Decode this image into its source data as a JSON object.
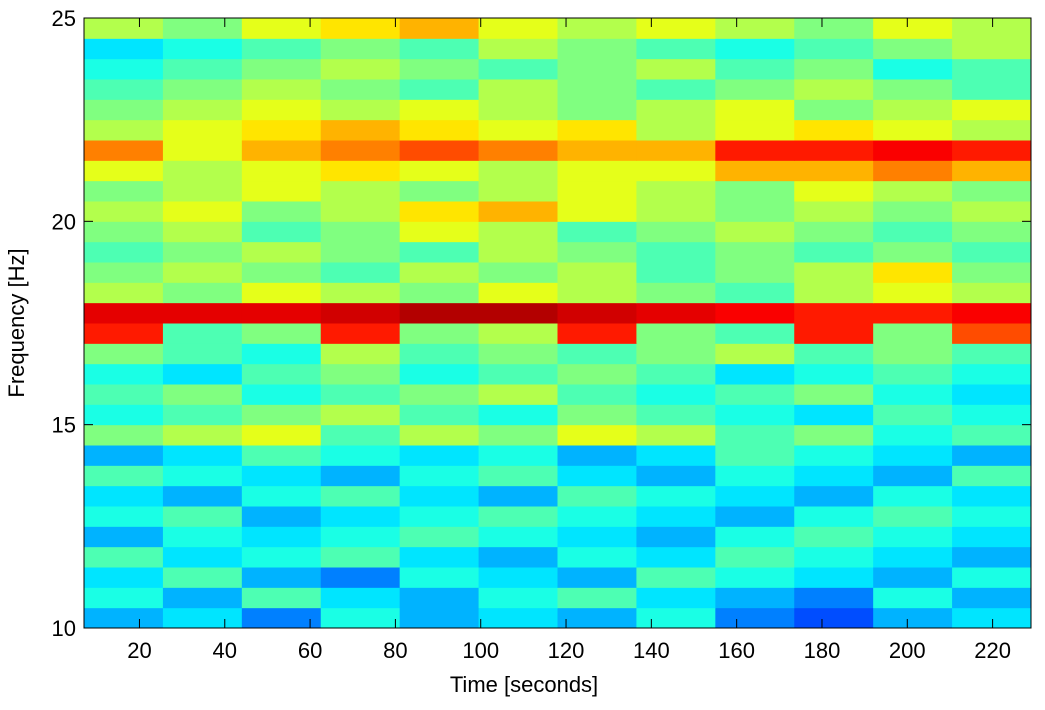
{
  "chart_data": {
    "type": "heatmap",
    "colormap": "jet",
    "xlabel": "Time [seconds]",
    "ylabel": "Frequency [Hz]",
    "xlim": [
      7,
      229
    ],
    "ylim": [
      10,
      25
    ],
    "xticks": [
      20,
      40,
      60,
      80,
      100,
      120,
      140,
      160,
      180,
      200,
      220
    ],
    "yticks": [
      10,
      15,
      20,
      25
    ],
    "x": [
      16.25,
      34.75,
      53.25,
      71.75,
      90.25,
      108.75,
      127.25,
      145.75,
      164.25,
      182.75,
      201.25,
      219.75
    ],
    "y": [
      10.25,
      10.75,
      11.25,
      11.75,
      12.25,
      12.75,
      13.25,
      13.75,
      14.25,
      14.75,
      15.25,
      15.75,
      16.25,
      16.75,
      17.25,
      17.75,
      18.25,
      18.75,
      19.25,
      19.75,
      20.25,
      20.75,
      21.25,
      21.75,
      22.25,
      22.75,
      23.25,
      23.75,
      24.25,
      24.75
    ],
    "z": [
      [
        0.3,
        0.35,
        0.25,
        0.4,
        0.3,
        0.35,
        0.3,
        0.4,
        0.25,
        0.2,
        0.3,
        0.35
      ],
      [
        0.4,
        0.3,
        0.45,
        0.35,
        0.3,
        0.4,
        0.45,
        0.35,
        0.3,
        0.25,
        0.4,
        0.3
      ],
      [
        0.35,
        0.45,
        0.3,
        0.25,
        0.4,
        0.35,
        0.3,
        0.45,
        0.4,
        0.35,
        0.3,
        0.4
      ],
      [
        0.45,
        0.35,
        0.4,
        0.45,
        0.35,
        0.3,
        0.4,
        0.35,
        0.45,
        0.4,
        0.35,
        0.3
      ],
      [
        0.3,
        0.4,
        0.35,
        0.4,
        0.45,
        0.4,
        0.35,
        0.3,
        0.4,
        0.45,
        0.4,
        0.35
      ],
      [
        0.4,
        0.45,
        0.3,
        0.35,
        0.4,
        0.45,
        0.4,
        0.35,
        0.3,
        0.4,
        0.45,
        0.4
      ],
      [
        0.35,
        0.3,
        0.4,
        0.45,
        0.35,
        0.3,
        0.45,
        0.4,
        0.35,
        0.3,
        0.4,
        0.35
      ],
      [
        0.45,
        0.4,
        0.35,
        0.3,
        0.4,
        0.45,
        0.35,
        0.3,
        0.4,
        0.35,
        0.3,
        0.45
      ],
      [
        0.3,
        0.35,
        0.45,
        0.4,
        0.35,
        0.4,
        0.3,
        0.35,
        0.45,
        0.4,
        0.35,
        0.3
      ],
      [
        0.5,
        0.55,
        0.6,
        0.45,
        0.55,
        0.5,
        0.6,
        0.55,
        0.45,
        0.5,
        0.4,
        0.45
      ],
      [
        0.4,
        0.45,
        0.5,
        0.55,
        0.45,
        0.4,
        0.5,
        0.45,
        0.4,
        0.35,
        0.45,
        0.4
      ],
      [
        0.45,
        0.5,
        0.4,
        0.45,
        0.5,
        0.55,
        0.45,
        0.4,
        0.45,
        0.5,
        0.4,
        0.35
      ],
      [
        0.4,
        0.35,
        0.45,
        0.5,
        0.4,
        0.45,
        0.5,
        0.45,
        0.35,
        0.4,
        0.45,
        0.4
      ],
      [
        0.5,
        0.45,
        0.4,
        0.55,
        0.45,
        0.5,
        0.45,
        0.5,
        0.55,
        0.45,
        0.5,
        0.45
      ],
      [
        0.85,
        0.45,
        0.5,
        0.85,
        0.5,
        0.55,
        0.85,
        0.5,
        0.45,
        0.85,
        0.5,
        0.8
      ],
      [
        0.9,
        0.9,
        0.9,
        0.92,
        0.95,
        0.95,
        0.92,
        0.9,
        0.88,
        0.85,
        0.85,
        0.88
      ],
      [
        0.55,
        0.5,
        0.6,
        0.55,
        0.5,
        0.6,
        0.55,
        0.5,
        0.45,
        0.55,
        0.6,
        0.55
      ],
      [
        0.5,
        0.55,
        0.5,
        0.45,
        0.55,
        0.5,
        0.55,
        0.45,
        0.5,
        0.55,
        0.65,
        0.5
      ],
      [
        0.45,
        0.5,
        0.55,
        0.5,
        0.45,
        0.55,
        0.5,
        0.45,
        0.5,
        0.45,
        0.5,
        0.45
      ],
      [
        0.5,
        0.55,
        0.45,
        0.5,
        0.6,
        0.55,
        0.45,
        0.5,
        0.55,
        0.5,
        0.45,
        0.5
      ],
      [
        0.55,
        0.6,
        0.5,
        0.55,
        0.65,
        0.7,
        0.6,
        0.55,
        0.5,
        0.55,
        0.5,
        0.55
      ],
      [
        0.5,
        0.55,
        0.6,
        0.55,
        0.5,
        0.55,
        0.6,
        0.55,
        0.5,
        0.6,
        0.55,
        0.5
      ],
      [
        0.6,
        0.55,
        0.6,
        0.65,
        0.6,
        0.55,
        0.6,
        0.6,
        0.7,
        0.7,
        0.75,
        0.7
      ],
      [
        0.75,
        0.6,
        0.7,
        0.75,
        0.8,
        0.75,
        0.7,
        0.7,
        0.85,
        0.85,
        0.88,
        0.85
      ],
      [
        0.55,
        0.6,
        0.65,
        0.7,
        0.65,
        0.6,
        0.65,
        0.55,
        0.6,
        0.65,
        0.6,
        0.55
      ],
      [
        0.5,
        0.55,
        0.6,
        0.55,
        0.6,
        0.55,
        0.5,
        0.55,
        0.6,
        0.5,
        0.55,
        0.6
      ],
      [
        0.45,
        0.5,
        0.55,
        0.5,
        0.45,
        0.55,
        0.5,
        0.45,
        0.5,
        0.55,
        0.5,
        0.45
      ],
      [
        0.4,
        0.45,
        0.5,
        0.55,
        0.5,
        0.45,
        0.5,
        0.55,
        0.45,
        0.5,
        0.4,
        0.45
      ],
      [
        0.35,
        0.4,
        0.45,
        0.5,
        0.45,
        0.55,
        0.5,
        0.45,
        0.4,
        0.45,
        0.5,
        0.55
      ],
      [
        0.55,
        0.5,
        0.6,
        0.65,
        0.7,
        0.6,
        0.55,
        0.6,
        0.55,
        0.5,
        0.6,
        0.55
      ]
    ]
  }
}
